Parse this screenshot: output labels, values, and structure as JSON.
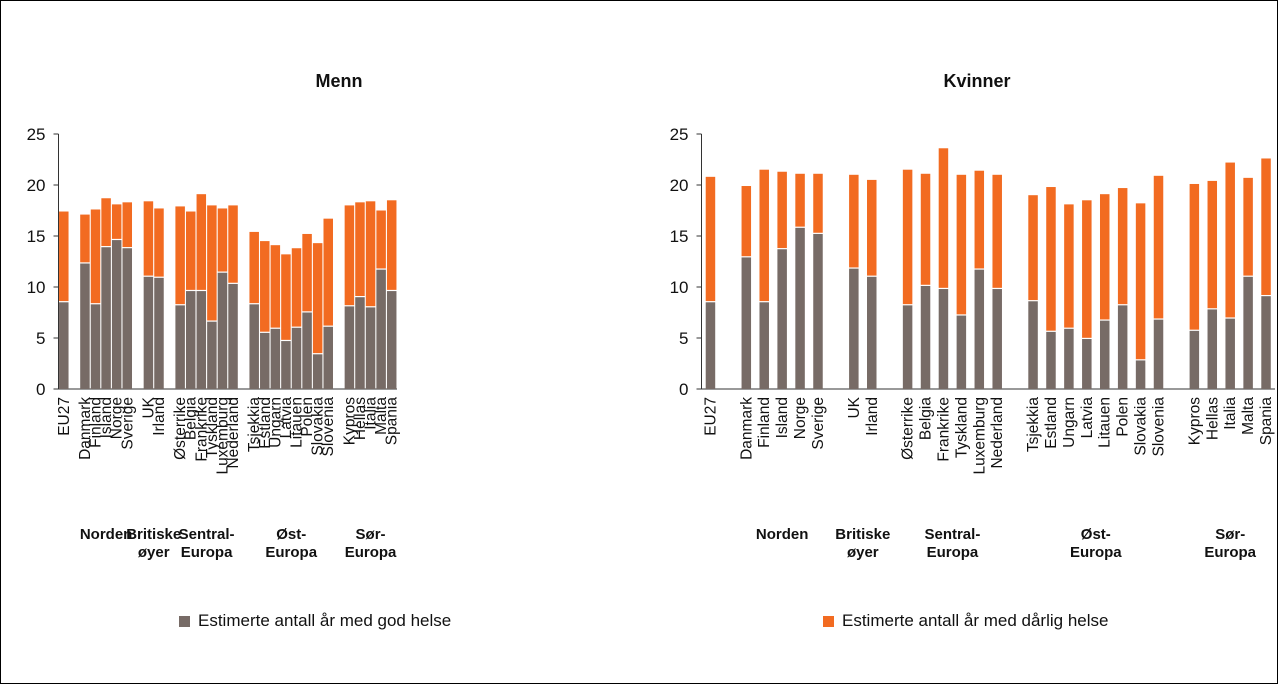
{
  "colors": {
    "good": "#776b66",
    "bad": "#f26b21"
  },
  "legend": {
    "good_label": "Estimerte antall år med god helse",
    "bad_label": "Estimerte antall år med dårlig helse"
  },
  "chart_data": [
    {
      "type": "bar",
      "stacked": true,
      "title": "Menn",
      "ylim": [
        0,
        25
      ],
      "yticks": [
        0,
        5,
        10,
        15,
        20,
        25
      ],
      "categories": [
        "EU27",
        "",
        "Danmark",
        "Finland",
        "Island",
        "Norge",
        "Sverige",
        "",
        "UK",
        "Irland",
        "",
        "Østerrike",
        "Belgia",
        "Frankrike",
        "Tyskland",
        "Luxemburg",
        "Nederland",
        "",
        "Tsjekkia",
        "Estland",
        "Ungarn",
        "Latvia",
        "Litauen",
        "Polen",
        "Slovakia",
        "Slovenia",
        "",
        "Kypros",
        "Hellas",
        "Italia",
        "Malta",
        "Spania"
      ],
      "series": [
        {
          "name": "Estimerte antall år med god helse",
          "values": [
            8.5,
            null,
            12.3,
            8.3,
            13.9,
            14.6,
            13.8,
            null,
            11.0,
            10.9,
            null,
            8.2,
            9.6,
            9.6,
            6.6,
            11.4,
            10.3,
            null,
            8.3,
            5.5,
            5.9,
            4.7,
            6.0,
            7.5,
            3.4,
            6.1,
            null,
            8.1,
            9.0,
            8.0,
            11.7,
            9.6
          ]
        },
        {
          "name": "Estimerte antall år med dårlig helse",
          "values": [
            8.9,
            null,
            4.8,
            9.3,
            4.8,
            3.5,
            4.5,
            null,
            7.4,
            6.8,
            null,
            9.7,
            7.8,
            9.5,
            11.4,
            6.3,
            7.7,
            null,
            7.1,
            9.0,
            8.2,
            8.5,
            7.8,
            7.7,
            10.9,
            10.6,
            null,
            9.9,
            9.3,
            10.4,
            5.8,
            8.9
          ]
        }
      ],
      "groups": [
        {
          "label": [
            "Norden"
          ]
        },
        {
          "label": [
            "Britiske",
            "øyer"
          ]
        },
        {
          "label": [
            "Sentral-",
            "Europa"
          ]
        },
        {
          "label": [
            "Øst-",
            "Europa"
          ]
        },
        {
          "label": [
            "Sør-",
            "Europa"
          ]
        }
      ]
    },
    {
      "type": "bar",
      "stacked": true,
      "title": "Kvinner",
      "ylim": [
        0,
        25
      ],
      "yticks": [
        0,
        5,
        10,
        15,
        20,
        25
      ],
      "categories": [
        "EU27",
        "",
        "Danmark",
        "Finland",
        "Island",
        "Norge",
        "Sverige",
        "",
        "UK",
        "Irland",
        "",
        "Østerrike",
        "Belgia",
        "Frankrike",
        "Tyskland",
        "Luxemburg",
        "Nederland",
        "",
        "Tsjekkia",
        "Estland",
        "Ungarn",
        "Latvia",
        "Litauen",
        "Polen",
        "Slovakia",
        "Slovenia",
        "",
        "Kypros",
        "Hellas",
        "Italia",
        "Malta",
        "Spania"
      ],
      "series": [
        {
          "name": "Estimerte antall år med god helse",
          "values": [
            8.5,
            null,
            12.9,
            8.5,
            13.7,
            15.8,
            15.2,
            null,
            11.8,
            11.0,
            null,
            8.2,
            10.1,
            9.8,
            7.2,
            11.7,
            9.8,
            null,
            8.6,
            5.6,
            5.9,
            4.9,
            6.7,
            8.2,
            2.8,
            6.8,
            null,
            5.7,
            7.8,
            6.9,
            11.0,
            9.1
          ]
        },
        {
          "name": "Estimerte antall år med dårlig helse",
          "values": [
            12.3,
            null,
            7.0,
            13.0,
            7.6,
            5.3,
            5.9,
            null,
            9.2,
            9.5,
            null,
            13.3,
            11.0,
            13.8,
            13.8,
            9.7,
            11.2,
            null,
            10.4,
            14.2,
            12.2,
            13.6,
            12.4,
            11.5,
            15.4,
            14.1,
            null,
            14.4,
            12.6,
            15.3,
            9.7,
            13.5
          ]
        }
      ],
      "groups": [
        {
          "label": [
            "Norden"
          ]
        },
        {
          "label": [
            "Britiske",
            "øyer"
          ]
        },
        {
          "label": [
            "Sentral-",
            "Europa"
          ]
        },
        {
          "label": [
            "Øst-",
            "Europa"
          ]
        },
        {
          "label": [
            "Sør-",
            "Europa"
          ]
        }
      ]
    }
  ]
}
